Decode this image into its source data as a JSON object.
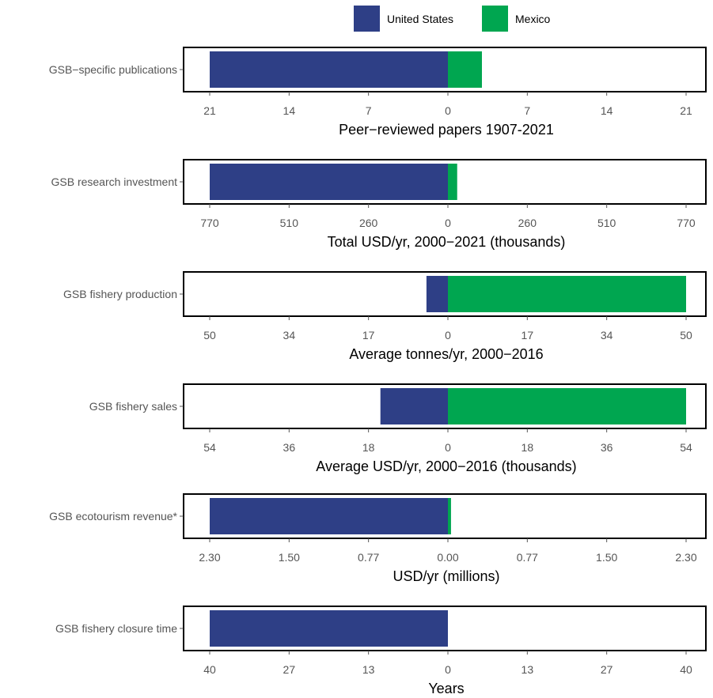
{
  "legend": {
    "position": "top",
    "entries": [
      {
        "label": "United States",
        "color": "#2e3f86"
      },
      {
        "label": "Mexico",
        "color": "#00a650"
      }
    ]
  },
  "chart_data": [
    {
      "type": "bar",
      "orientation": "horizontal-diverging",
      "category": "GSB−specific publications",
      "xlabel": "Peer−reviewed papers 1907-2021",
      "ticks": [
        "21",
        "14",
        "7",
        "0",
        "7",
        "14",
        "21"
      ],
      "xlim": [
        -21,
        21
      ],
      "series": [
        {
          "name": "United States",
          "values": [
            21
          ]
        },
        {
          "name": "Mexico",
          "values": [
            3
          ]
        }
      ]
    },
    {
      "type": "bar",
      "orientation": "horizontal-diverging",
      "category": "GSB research investment",
      "xlabel": "Total USD/yr, 2000−2021 (thousands)",
      "ticks": [
        "770",
        "510",
        "260",
        "0",
        "260",
        "510",
        "770"
      ],
      "xlim": [
        -770,
        770
      ],
      "series": [
        {
          "name": "United States",
          "values": [
            770
          ]
        },
        {
          "name": "Mexico",
          "values": [
            30
          ]
        }
      ]
    },
    {
      "type": "bar",
      "orientation": "horizontal-diverging",
      "category": "GSB fishery production",
      "xlabel": "Average tonnes/yr, 2000−2016",
      "ticks": [
        "50",
        "34",
        "17",
        "0",
        "17",
        "34",
        "50"
      ],
      "xlim": [
        -50,
        50
      ],
      "series": [
        {
          "name": "United States",
          "values": [
            -4.5
          ]
        },
        {
          "name": "Mexico",
          "values": [
            50
          ]
        }
      ]
    },
    {
      "type": "bar",
      "orientation": "horizontal-diverging",
      "category": "GSB fishery sales",
      "xlabel": "Average USD/yr, 2000−2016 (thousands)",
      "ticks": [
        "54",
        "36",
        "18",
        "0",
        "18",
        "36",
        "54"
      ],
      "xlim": [
        -54,
        54
      ],
      "series": [
        {
          "name": "United States",
          "values": [
            -15.3
          ]
        },
        {
          "name": "Mexico",
          "values": [
            54
          ]
        }
      ]
    },
    {
      "type": "bar",
      "orientation": "horizontal-diverging",
      "category": "GSB ecotourism revenue*",
      "xlabel": "USD/yr (millions)",
      "ticks": [
        "2.30",
        "1.50",
        "0.77",
        "0.00",
        "0.77",
        "1.50",
        "2.30"
      ],
      "xlim": [
        -2.3,
        2.3
      ],
      "series": [
        {
          "name": "United States",
          "values": [
            2.3
          ]
        },
        {
          "name": "Mexico",
          "values": [
            0.03
          ]
        }
      ]
    },
    {
      "type": "bar",
      "orientation": "horizontal-diverging",
      "category": "GSB fishery closure time",
      "xlabel": "Years",
      "ticks": [
        "40",
        "27",
        "13",
        "0",
        "13",
        "27",
        "40"
      ],
      "xlim": [
        -40,
        40
      ],
      "series": [
        {
          "name": "United States",
          "values": [
            40
          ]
        },
        {
          "name": "Mexico",
          "values": [
            0
          ]
        }
      ]
    }
  ]
}
